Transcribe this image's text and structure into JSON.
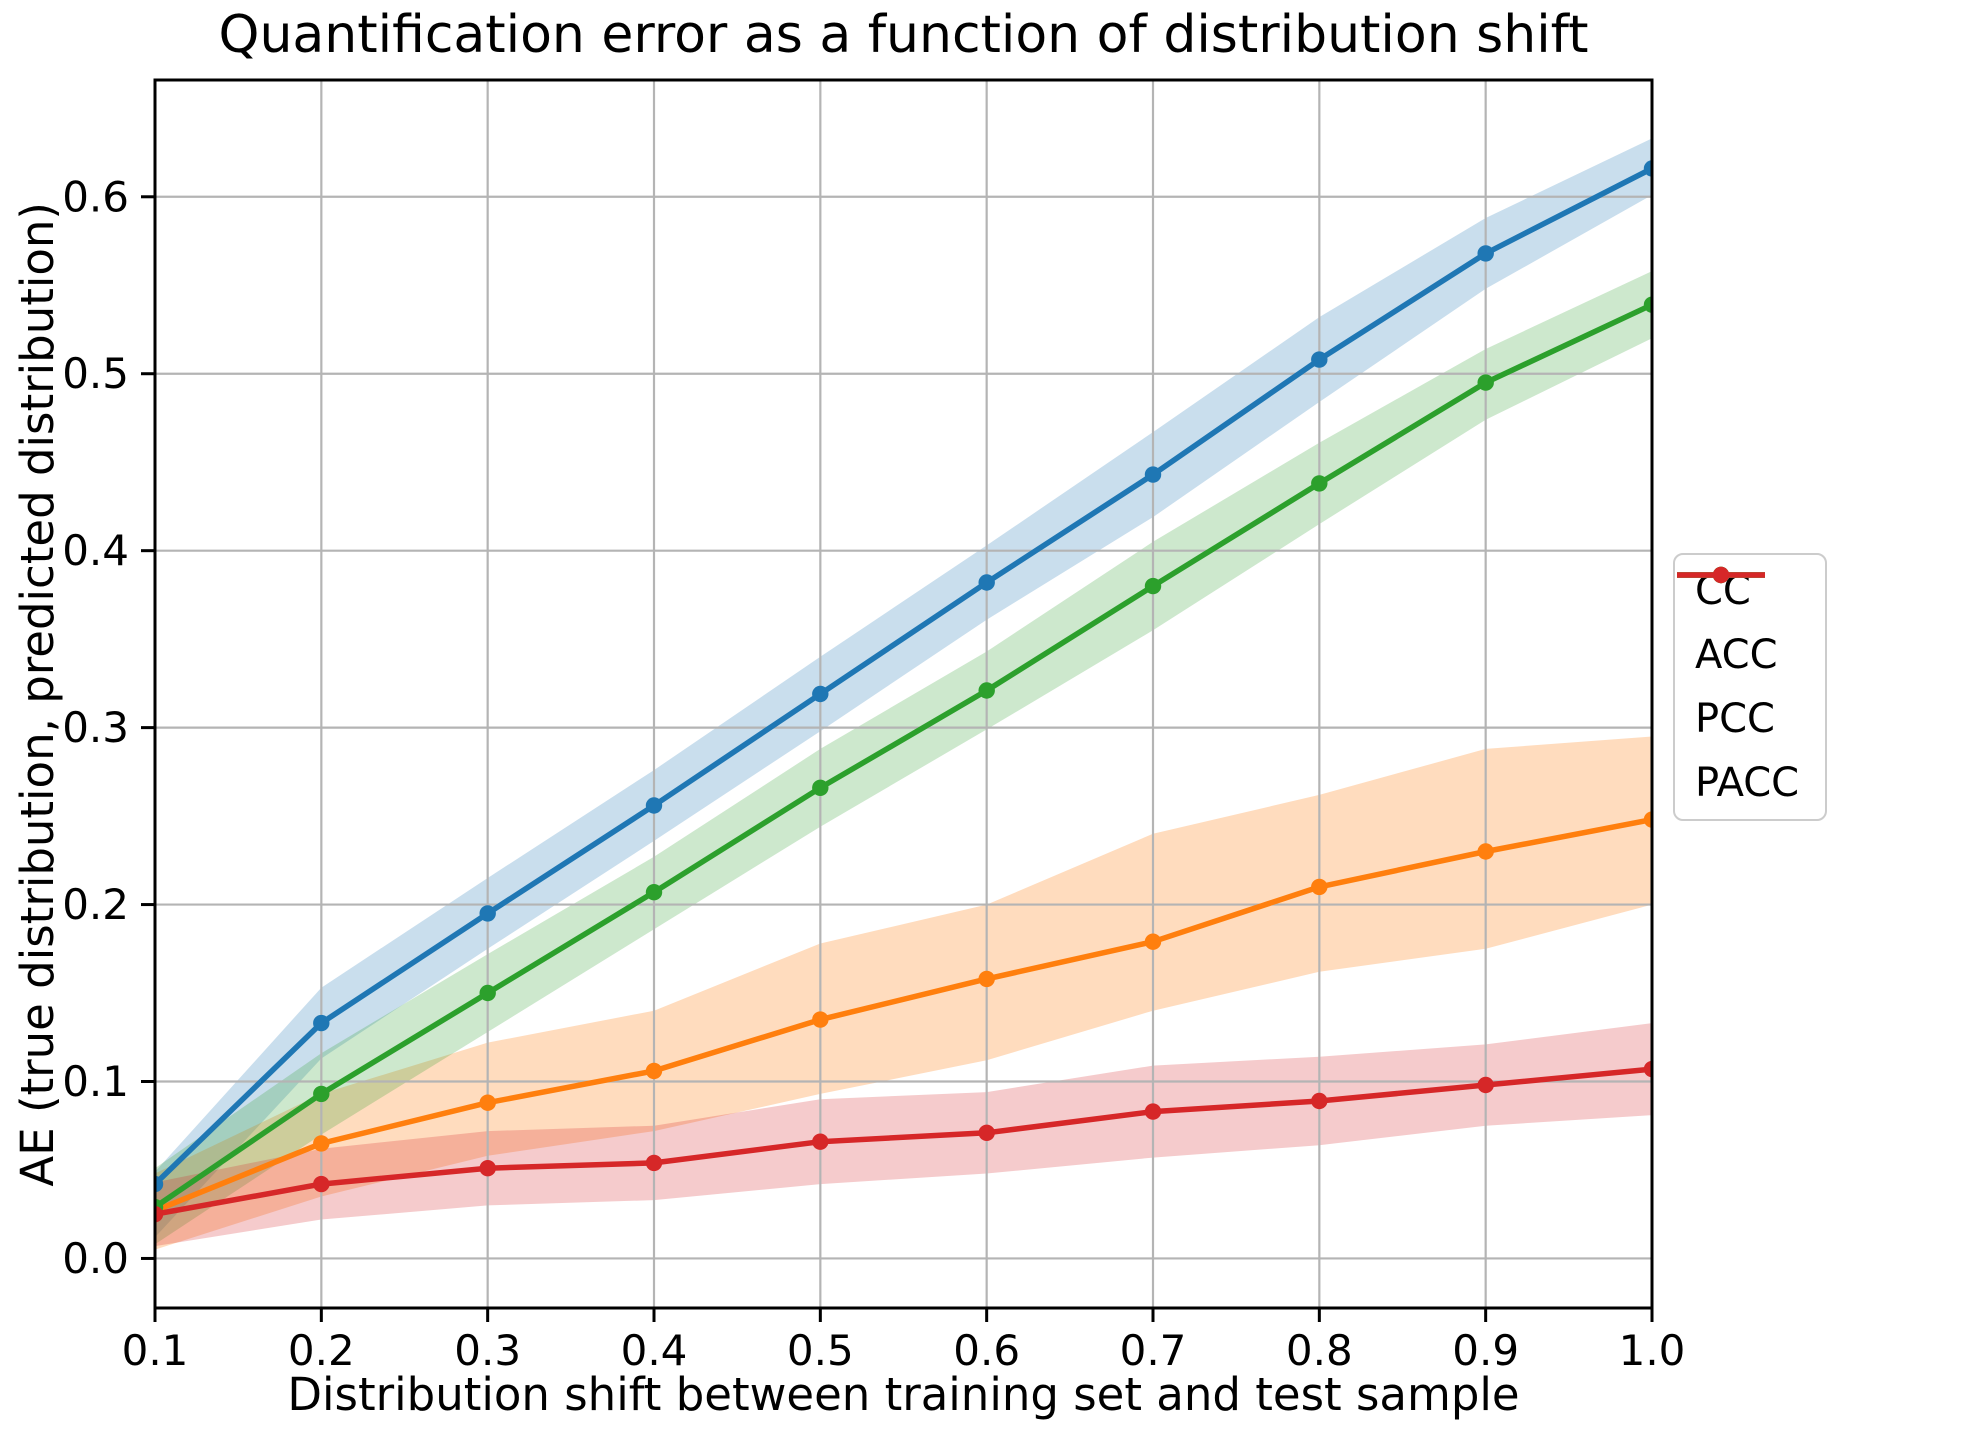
{
  "figure": {
    "background": "#ffffff"
  },
  "chart_data": {
    "type": "line",
    "title": "Quantification error as a function of distribution shift",
    "xlabel": "Distribution shift between training set and test sample",
    "ylabel": "AE (true distribution, predicted distribution)",
    "grid": true,
    "legend_position": "right-outside",
    "xlim": [
      0.1,
      1.0
    ],
    "ylim": [
      -0.028,
      0.666
    ],
    "x": [
      0.1,
      0.2,
      0.3,
      0.4,
      0.5,
      0.6,
      0.7,
      0.8,
      0.9,
      1.0
    ],
    "x_ticks": [
      "0.1",
      "0.2",
      "0.3",
      "0.4",
      "0.5",
      "0.6",
      "0.7",
      "0.8",
      "0.9",
      "1.0"
    ],
    "y_tick_values": [
      0.0,
      0.1,
      0.2,
      0.3,
      0.4,
      0.5,
      0.6
    ],
    "y_ticks": [
      "0.0",
      "0.1",
      "0.2",
      "0.3",
      "0.4",
      "0.5",
      "0.6"
    ],
    "style": {
      "grid_color": "#b4b4b4",
      "axis_color": "#000000",
      "text_color": "#000000",
      "plot_background": "#ffffff"
    },
    "series": [
      {
        "name": "CC",
        "color": "#1f77b4",
        "band_alpha": 0.24,
        "values": [
          0.042,
          0.133,
          0.195,
          0.256,
          0.319,
          0.382,
          0.443,
          0.508,
          0.568,
          0.616
        ],
        "band_lower": [
          0.012,
          0.113,
          0.175,
          0.236,
          0.298,
          0.361,
          0.419,
          0.484,
          0.548,
          0.601
        ],
        "band_upper": [
          0.049,
          0.153,
          0.215,
          0.276,
          0.34,
          0.403,
          0.467,
          0.532,
          0.588,
          0.633
        ]
      },
      {
        "name": "ACC",
        "color": "#ff7f0e",
        "band_alpha": 0.27,
        "values": [
          0.027,
          0.065,
          0.088,
          0.106,
          0.135,
          0.158,
          0.179,
          0.21,
          0.23,
          0.248
        ],
        "band_lower": [
          0.005,
          0.035,
          0.058,
          0.072,
          0.093,
          0.112,
          0.14,
          0.162,
          0.175,
          0.2
        ],
        "band_upper": [
          0.048,
          0.093,
          0.122,
          0.14,
          0.178,
          0.2,
          0.24,
          0.262,
          0.288,
          0.295
        ]
      },
      {
        "name": "PCC",
        "color": "#2ca02c",
        "band_alpha": 0.24,
        "values": [
          0.029,
          0.093,
          0.15,
          0.207,
          0.266,
          0.321,
          0.38,
          0.438,
          0.495,
          0.539
        ],
        "band_lower": [
          0.008,
          0.07,
          0.128,
          0.186,
          0.244,
          0.299,
          0.355,
          0.415,
          0.474,
          0.52
        ],
        "band_upper": [
          0.051,
          0.116,
          0.172,
          0.227,
          0.288,
          0.343,
          0.405,
          0.461,
          0.514,
          0.558
        ]
      },
      {
        "name": "PACC",
        "color": "#d62728",
        "band_alpha": 0.24,
        "values": [
          0.025,
          0.042,
          0.051,
          0.054,
          0.066,
          0.071,
          0.083,
          0.089,
          0.098,
          0.107
        ],
        "band_lower": [
          0.007,
          0.022,
          0.03,
          0.033,
          0.042,
          0.048,
          0.057,
          0.064,
          0.075,
          0.081
        ],
        "band_upper": [
          0.043,
          0.062,
          0.072,
          0.075,
          0.09,
          0.094,
          0.109,
          0.114,
          0.121,
          0.133
        ]
      }
    ]
  }
}
